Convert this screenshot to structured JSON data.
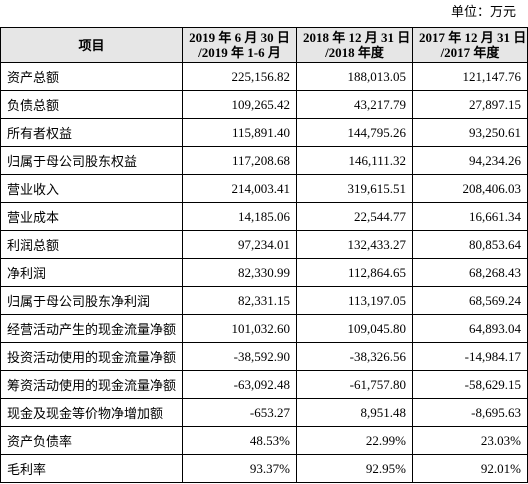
{
  "unit": "单位：万元",
  "table": {
    "header": [
      [
        "项目"
      ],
      [
        "2019 年 6 月 30 日",
        "/2019 年 1-6 月"
      ],
      [
        "2018 年 12 月 31 日",
        "/2018 年度"
      ],
      [
        "2017 年 12 月 31 日",
        "/2017 年度"
      ]
    ],
    "rows": [
      [
        "资产总额",
        "225,156.82",
        "188,013.05",
        "121,147.76"
      ],
      [
        "负债总额",
        "109,265.42",
        "43,217.79",
        "27,897.15"
      ],
      [
        "所有者权益",
        "115,891.40",
        "144,795.26",
        "93,250.61"
      ],
      [
        "归属于母公司股东权益",
        "117,208.68",
        "146,111.32",
        "94,234.26"
      ],
      [
        "营业收入",
        "214,003.41",
        "319,615.51",
        "208,406.03"
      ],
      [
        "营业成本",
        "14,185.06",
        "22,544.77",
        "16,661.34"
      ],
      [
        "利润总额",
        "97,234.01",
        "132,433.27",
        "80,853.64"
      ],
      [
        "净利润",
        "82,330.99",
        "112,864.65",
        "68,268.43"
      ],
      [
        "归属于母公司股东净利润",
        "82,331.15",
        "113,197.05",
        "68,569.24"
      ],
      [
        "经营活动产生的现金流量净额",
        "101,032.60",
        "109,045.80",
        "64,893.04"
      ],
      [
        "投资活动使用的现金流量净额",
        "-38,592.90",
        "-38,326.56",
        "-14,984.17"
      ],
      [
        "筹资活动使用的现金流量净额",
        "-63,092.48",
        "-61,757.80",
        "-58,629.15"
      ],
      [
        "现金及现金等价物净增加额",
        "-653.27",
        "8,951.48",
        "-8,695.63"
      ],
      [
        "资产负债率",
        "48.53%",
        "22.99%",
        "23.03%"
      ],
      [
        "毛利率",
        "93.37%",
        "92.95%",
        "92.01%"
      ]
    ]
  }
}
